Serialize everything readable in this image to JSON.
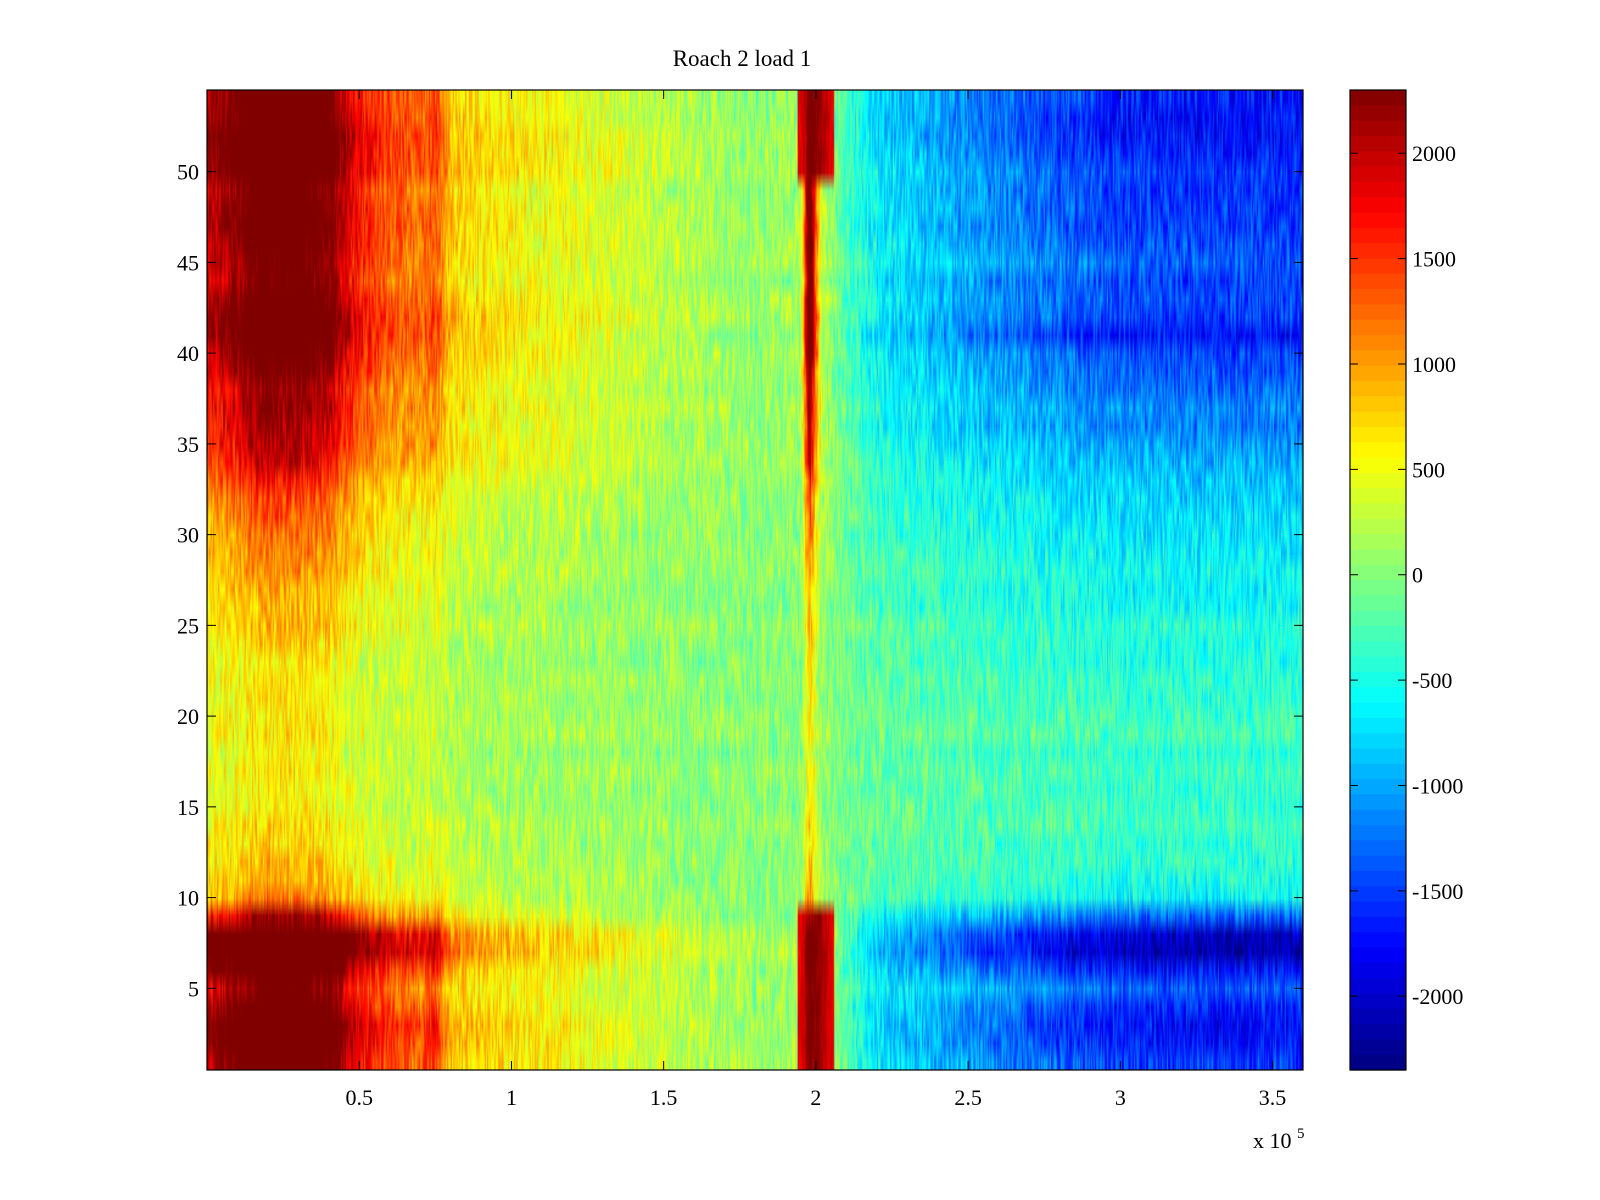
{
  "chart_data": {
    "type": "heatmap",
    "title": "Roach 2 load 1",
    "xlabel": "",
    "ylabel": "",
    "x_multiplier_label": "x 10",
    "x_multiplier_exponent": "5",
    "xlim": [
      0,
      3.6
    ],
    "ylim": [
      0.5,
      54.5
    ],
    "x_ticks": [
      0.5,
      1,
      1.5,
      2,
      2.5,
      3,
      3.5
    ],
    "x_tick_labels": [
      "0.5",
      "1",
      "1.5",
      "2",
      "2.5",
      "3",
      "3.5"
    ],
    "y_ticks": [
      5,
      10,
      15,
      20,
      25,
      30,
      35,
      40,
      45,
      50
    ],
    "y_tick_labels": [
      "5",
      "10",
      "15",
      "20",
      "25",
      "30",
      "35",
      "40",
      "45",
      "50"
    ],
    "rows": 54,
    "colormap": "jet",
    "clim": [
      -2350,
      2300
    ],
    "colorbar_ticks": [
      2000,
      1500,
      1000,
      500,
      0,
      -500,
      -1000,
      -1500,
      -2000
    ],
    "colorbar_tick_labels": [
      "2000",
      "1500",
      "1000",
      "500",
      "0",
      "-500",
      "-1000",
      "-1500",
      "-2000"
    ],
    "column_profile": {
      "x": [
        0.0,
        0.1,
        0.15,
        0.2,
        0.3,
        0.4,
        0.45,
        0.5,
        0.6,
        0.7,
        0.75,
        0.8,
        0.9,
        1.0,
        1.2,
        1.4,
        1.6,
        1.8,
        1.95,
        1.98,
        2.0,
        2.02,
        2.1,
        2.2,
        2.4,
        2.6,
        2.8,
        3.0,
        3.2,
        3.4,
        3.6
      ],
      "value": [
        1500,
        1750,
        2000,
        2100,
        2050,
        1850,
        1500,
        1250,
        1000,
        900,
        1050,
        600,
        500,
        450,
        350,
        250,
        150,
        50,
        100,
        2200,
        1000,
        200,
        -200,
        -500,
        -700,
        -850,
        -1000,
        -1100,
        -1150,
        -1150,
        -1150
      ]
    },
    "row_profile": {
      "row": [
        1,
        2,
        3,
        4,
        5,
        6,
        7,
        8,
        9,
        10,
        11,
        13,
        15,
        17,
        20,
        23,
        26,
        29,
        32,
        34,
        36,
        38,
        40,
        41,
        43,
        45,
        47,
        49,
        51,
        52,
        53,
        54
      ],
      "amplitude": [
        1.35,
        1.5,
        1.55,
        1.4,
        1.2,
        1.5,
        1.9,
        1.8,
        1.1,
        0.55,
        0.45,
        0.35,
        0.3,
        0.3,
        0.3,
        0.35,
        0.45,
        0.55,
        0.7,
        0.9,
        1.05,
        1.1,
        1.3,
        1.45,
        1.3,
        1.2,
        1.35,
        1.3,
        1.45,
        1.5,
        1.45,
        1.4
      ]
    },
    "features": [
      {
        "x": 2.0,
        "rows": [
          1,
          9
        ],
        "value": 2300
      },
      {
        "x": 2.0,
        "rows": [
          50,
          54
        ],
        "value": 2300
      }
    ]
  }
}
